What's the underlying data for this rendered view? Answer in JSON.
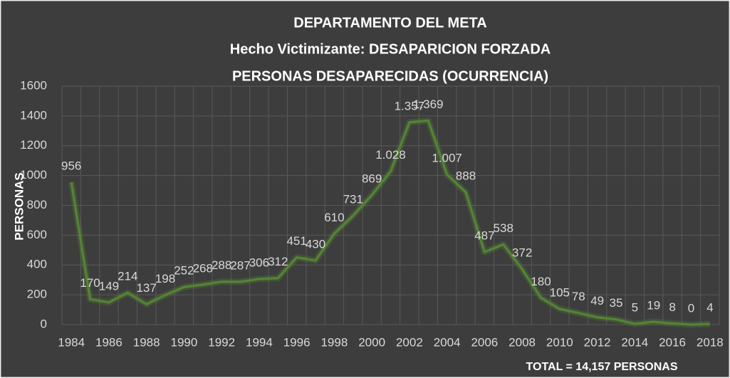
{
  "chart_data": {
    "type": "line",
    "title": "DEPARTAMENTO DEL META",
    "subtitle": "Hecho Victimizante: DESAPARICION FORZADA",
    "subtitle2": "PERSONAS DESAPARECIDAS (OCURRENCIA)",
    "y_label": "PERSONAS",
    "footer": "TOTAL = 14,157 PERSONAS",
    "categories": [
      "1984",
      null,
      "1986",
      null,
      "1988",
      null,
      "1990",
      null,
      "1992",
      null,
      "1994",
      null,
      "1996",
      null,
      "1998",
      null,
      "2000",
      null,
      "2002",
      null,
      "2004",
      null,
      "2006",
      null,
      "2008",
      null,
      "2010",
      null,
      "2012",
      null,
      "2014",
      null,
      "2016",
      null,
      "2018"
    ],
    "values": [
      956,
      170,
      149,
      214,
      137,
      198,
      252,
      268,
      288,
      287,
      306,
      312,
      451,
      430,
      610,
      731,
      869,
      1028,
      1357,
      1369,
      1007,
      888,
      487,
      538,
      372,
      180,
      105,
      78,
      49,
      35,
      5,
      19,
      8,
      0,
      4
    ],
    "value_labels": [
      "956",
      "170",
      "149",
      "214",
      "137",
      "198",
      "252",
      "268",
      "288",
      "287",
      "306",
      "312",
      "451",
      "430",
      "610",
      "731",
      "869",
      "1.028",
      "1.357",
      "1.369",
      "1.007",
      "888",
      "487",
      "538",
      "372",
      "180",
      "105",
      "78",
      "49",
      "35",
      "5",
      "19",
      "8",
      "0",
      "4"
    ],
    "color": "#548235",
    "ylim": [
      0,
      1600
    ],
    "yticks": [
      0,
      200,
      400,
      600,
      800,
      1000,
      1200,
      1400,
      1600
    ],
    "grid": true
  }
}
